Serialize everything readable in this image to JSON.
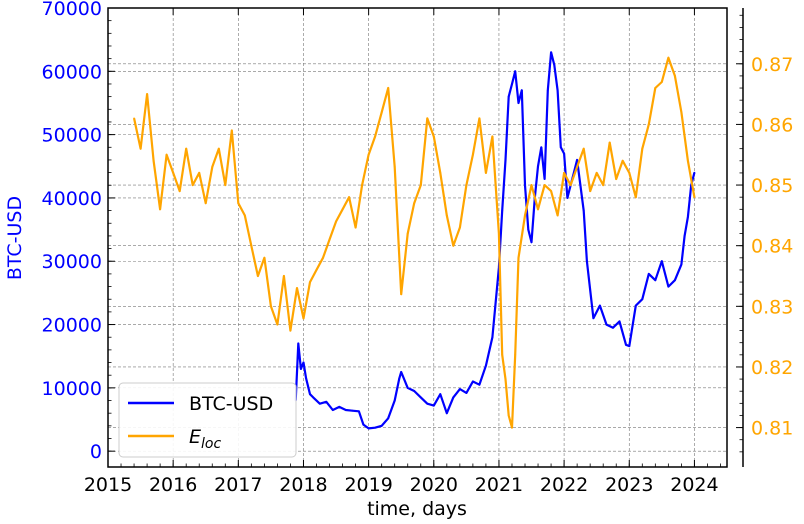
{
  "chart_data": {
    "type": "line",
    "xlabel": "time, days",
    "ylabel_left": "BTC-USD",
    "grid": true,
    "legend_position": "lower-left",
    "x_ticks": [
      "2015",
      "2016",
      "2017",
      "2018",
      "2019",
      "2020",
      "2021",
      "2022",
      "2023",
      "2024"
    ],
    "xlim": [
      2015.0,
      2024.5
    ],
    "y_left": {
      "ylim": [
        -2500,
        70000
      ],
      "ticks": [
        "0",
        "10000",
        "20000",
        "30000",
        "40000",
        "50000",
        "60000",
        "70000"
      ],
      "color": "#0000ff"
    },
    "y_right": {
      "ylim": [
        0.8035,
        0.8792
      ],
      "ticks": [
        "0.81",
        "0.82",
        "0.83",
        "0.84",
        "0.85",
        "0.86",
        "0.87"
      ],
      "color": "#ffa500"
    },
    "series": [
      {
        "name": "BTC-USD",
        "axis": "left",
        "color": "#0000ff",
        "x": [
          2017.88,
          2017.92,
          2017.96,
          2018.0,
          2018.04,
          2018.1,
          2018.15,
          2018.25,
          2018.35,
          2018.45,
          2018.55,
          2018.65,
          2018.75,
          2018.85,
          2018.92,
          2019.0,
          2019.1,
          2019.2,
          2019.3,
          2019.4,
          2019.47,
          2019.5,
          2019.6,
          2019.7,
          2019.8,
          2019.9,
          2020.0,
          2020.1,
          2020.2,
          2020.3,
          2020.4,
          2020.5,
          2020.6,
          2020.7,
          2020.8,
          2020.9,
          2021.0,
          2021.05,
          2021.1,
          2021.15,
          2021.2,
          2021.25,
          2021.3,
          2021.35,
          2021.4,
          2021.45,
          2021.5,
          2021.55,
          2021.6,
          2021.65,
          2021.7,
          2021.75,
          2021.8,
          2021.85,
          2021.9,
          2021.95,
          2022.0,
          2022.05,
          2022.1,
          2022.15,
          2022.2,
          2022.25,
          2022.3,
          2022.35,
          2022.45,
          2022.55,
          2022.65,
          2022.75,
          2022.85,
          2022.95,
          2023.0,
          2023.1,
          2023.2,
          2023.3,
          2023.4,
          2023.5,
          2023.6,
          2023.7,
          2023.8,
          2023.85,
          2023.9,
          2023.95,
          2024.0
        ],
        "values": [
          8000,
          17000,
          13000,
          14000,
          11500,
          9000,
          8500,
          7500,
          7800,
          6500,
          7000,
          6500,
          6400,
          6300,
          4200,
          3600,
          3700,
          4000,
          5200,
          8000,
          11500,
          12500,
          10000,
          9500,
          8500,
          7500,
          7200,
          9000,
          6000,
          8500,
          9800,
          9200,
          11000,
          10500,
          13500,
          18000,
          29000,
          38000,
          46000,
          56000,
          58000,
          60000,
          55000,
          57000,
          42000,
          35000,
          33000,
          40000,
          45000,
          48000,
          43000,
          57000,
          63000,
          61000,
          57000,
          48000,
          47000,
          40000,
          42000,
          44000,
          46000,
          42000,
          38000,
          30000,
          21000,
          23000,
          20000,
          19500,
          20500,
          16800,
          16600,
          23000,
          24000,
          28000,
          27000,
          30000,
          26000,
          27000,
          29500,
          34000,
          37000,
          42000,
          44000
        ]
      },
      {
        "name": "E_loc",
        "axis": "right",
        "color": "#ffa500",
        "x": [
          2015.4,
          2015.5,
          2015.6,
          2015.7,
          2015.8,
          2015.9,
          2016.0,
          2016.1,
          2016.2,
          2016.3,
          2016.4,
          2016.5,
          2016.6,
          2016.7,
          2016.8,
          2016.9,
          2017.0,
          2017.1,
          2017.2,
          2017.3,
          2017.4,
          2017.5,
          2017.6,
          2017.7,
          2017.8,
          2017.9,
          2018.0,
          2018.1,
          2018.2,
          2018.3,
          2018.4,
          2018.5,
          2018.6,
          2018.7,
          2018.8,
          2018.9,
          2019.0,
          2019.1,
          2019.2,
          2019.3,
          2019.4,
          2019.5,
          2019.6,
          2019.7,
          2019.8,
          2019.9,
          2020.0,
          2020.1,
          2020.2,
          2020.3,
          2020.4,
          2020.5,
          2020.6,
          2020.7,
          2020.8,
          2020.9,
          2021.0,
          2021.05,
          2021.1,
          2021.15,
          2021.2,
          2021.25,
          2021.3,
          2021.4,
          2021.5,
          2021.6,
          2021.7,
          2021.8,
          2021.9,
          2022.0,
          2022.1,
          2022.2,
          2022.3,
          2022.4,
          2022.5,
          2022.6,
          2022.7,
          2022.8,
          2022.9,
          2023.0,
          2023.1,
          2023.2,
          2023.3,
          2023.4,
          2023.5,
          2023.6,
          2023.7,
          2023.8,
          2023.9,
          2024.0
        ],
        "values": [
          0.861,
          0.856,
          0.865,
          0.854,
          0.846,
          0.855,
          0.852,
          0.849,
          0.856,
          0.85,
          0.852,
          0.847,
          0.853,
          0.856,
          0.85,
          0.859,
          0.847,
          0.845,
          0.84,
          0.835,
          0.838,
          0.83,
          0.827,
          0.835,
          0.826,
          0.833,
          0.828,
          0.834,
          0.836,
          0.838,
          0.841,
          0.844,
          0.846,
          0.848,
          0.843,
          0.85,
          0.855,
          0.858,
          0.862,
          0.866,
          0.853,
          0.832,
          0.842,
          0.847,
          0.85,
          0.861,
          0.858,
          0.852,
          0.845,
          0.84,
          0.843,
          0.85,
          0.855,
          0.861,
          0.852,
          0.858,
          0.842,
          0.822,
          0.818,
          0.812,
          0.81,
          0.822,
          0.838,
          0.845,
          0.85,
          0.846,
          0.85,
          0.849,
          0.845,
          0.852,
          0.85,
          0.853,
          0.856,
          0.849,
          0.852,
          0.85,
          0.857,
          0.851,
          0.854,
          0.852,
          0.848,
          0.856,
          0.86,
          0.866,
          0.867,
          0.871,
          0.868,
          0.862,
          0.854,
          0.848
        ]
      }
    ],
    "legend": [
      {
        "label": "BTC-USD",
        "color": "#0000ff"
      },
      {
        "label": "E",
        "sub": "loc",
        "color": "#ffa500"
      }
    ]
  }
}
